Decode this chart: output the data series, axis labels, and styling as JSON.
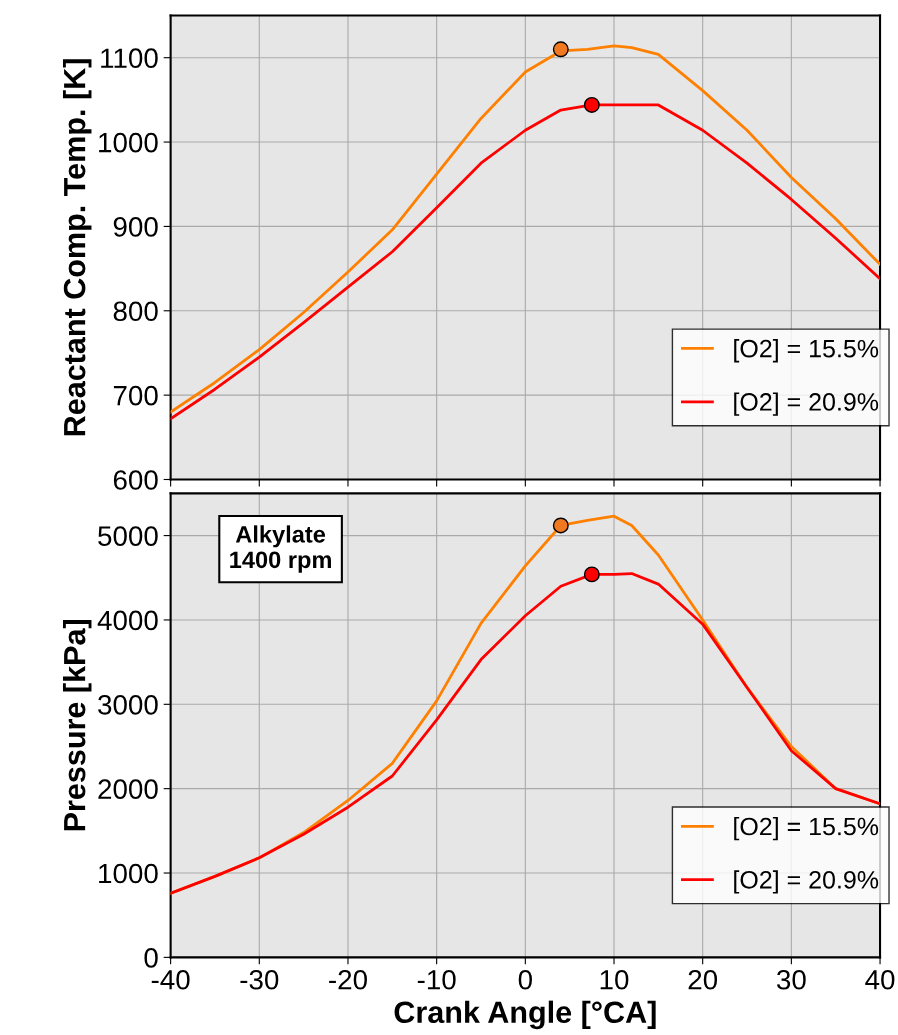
{
  "chart_data": [
    {
      "type": "line",
      "ylabel": "Reactant Comp. Temp. [K]",
      "xlim": [
        -40,
        40
      ],
      "xticks": [
        -40,
        -30,
        -20,
        -10,
        0,
        10,
        20,
        30,
        40
      ],
      "ylim": [
        600,
        1150
      ],
      "yticks": [
        600,
        700,
        800,
        900,
        1000,
        1100
      ],
      "grid": true,
      "legend": "bottom right",
      "tick_labels": "y",
      "marker": "none",
      "series": [
        {
          "name": "[O2] = 15.5%",
          "color": "#ff8000",
          "x": [
            -40,
            -35,
            -30,
            -25,
            -20,
            -15,
            -10,
            -5,
            0,
            4,
            7,
            10,
            12,
            15,
            20,
            25,
            30,
            35,
            40
          ],
          "values": [
            680,
            715,
            754,
            798,
            846,
            896,
            962,
            1028,
            1083,
            1108,
            1110,
            1114,
            1112,
            1104,
            1061,
            1014,
            958,
            909,
            855
          ]
        },
        {
          "name": "[O2] = 20.9%",
          "color": "#ff0000",
          "x": [
            -40,
            -35,
            -30,
            -25,
            -20,
            -15,
            -10,
            -5,
            0,
            4,
            7.5,
            10,
            15,
            20,
            25,
            30,
            35,
            40
          ],
          "values": [
            672,
            707,
            745,
            786,
            828,
            870,
            922,
            975,
            1014,
            1038,
            1044,
            1044,
            1044,
            1014,
            975,
            932,
            886,
            838
          ]
        },
        {
          "type": "scatter",
          "color": "#f07820",
          "x": [
            4
          ],
          "values": [
            1110
          ],
          "marker": "circle"
        },
        {
          "type": "scatter",
          "color": "#ff0000",
          "x": [
            7.5
          ],
          "values": [
            1044
          ],
          "marker": "circle"
        }
      ]
    },
    {
      "type": "line",
      "xlabel": "Crank Angle [°CA]",
      "ylabel": "Pressure [kPa]",
      "xlim": [
        -40,
        40
      ],
      "xticks": [
        -40,
        -30,
        -20,
        -10,
        0,
        10,
        20,
        30,
        40
      ],
      "ylim": [
        0,
        5500
      ],
      "yticks": [
        0,
        1000,
        2000,
        3000,
        4000,
        5000
      ],
      "grid": true,
      "legend": "bottom right",
      "marker": "none",
      "annotations": [
        "Alkylate\n1400 rpm"
      ],
      "series": [
        {
          "name": "[O2] = 15.5%",
          "color": "#ff8000",
          "x": [
            -40,
            -35,
            -30,
            -25,
            -20,
            -15,
            -10,
            -5,
            0,
            4,
            7,
            10,
            12,
            15,
            20,
            25,
            30,
            35,
            40
          ],
          "values": [
            760,
            960,
            1180,
            1480,
            1860,
            2300,
            3040,
            3960,
            4640,
            5120,
            5180,
            5230,
            5120,
            4770,
            4000,
            3200,
            2500,
            2000,
            1820
          ]
        },
        {
          "name": "[O2] = 20.9%",
          "color": "#ff0000",
          "x": [
            -40,
            -35,
            -30,
            -25,
            -20,
            -15,
            -10,
            -5,
            0,
            4,
            7.5,
            10,
            12,
            15,
            20,
            25,
            30,
            35,
            40
          ],
          "values": [
            760,
            960,
            1180,
            1460,
            1780,
            2150,
            2816,
            3530,
            4050,
            4400,
            4540,
            4540,
            4550,
            4425,
            3950,
            3200,
            2450,
            2000,
            1820
          ]
        },
        {
          "type": "scatter",
          "color": "#f07820",
          "x": [
            4
          ],
          "values": [
            5120
          ],
          "marker": "circle"
        },
        {
          "type": "scatter",
          "color": "#ff0000",
          "x": [
            7.5
          ],
          "values": [
            4540
          ],
          "marker": "circle"
        }
      ]
    }
  ]
}
